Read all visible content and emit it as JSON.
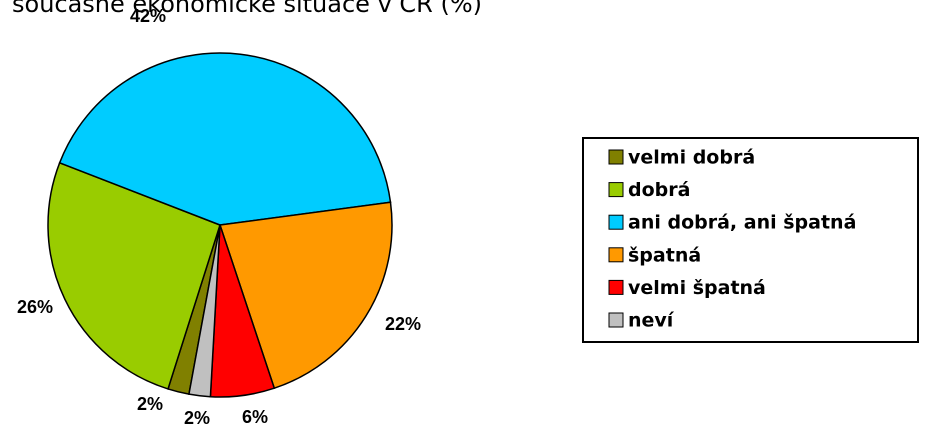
{
  "chart_data": {
    "type": "pie",
    "title": "současné ekonomické situace v ČR (%)",
    "categories": [
      "velmi dobrá",
      "dobrá",
      "ani dobrá, ani špatná",
      "špatná",
      "velmi špatná",
      "neví"
    ],
    "values": [
      2,
      26,
      42,
      22,
      6,
      2
    ],
    "value_labels": [
      "2%",
      "26%",
      "42%",
      "22%",
      "6%",
      "2%"
    ],
    "colors": [
      "#808000",
      "#99cc00",
      "#00ccff",
      "#ff9900",
      "#ff0000",
      "#c0c0c0"
    ],
    "legend": "right"
  }
}
